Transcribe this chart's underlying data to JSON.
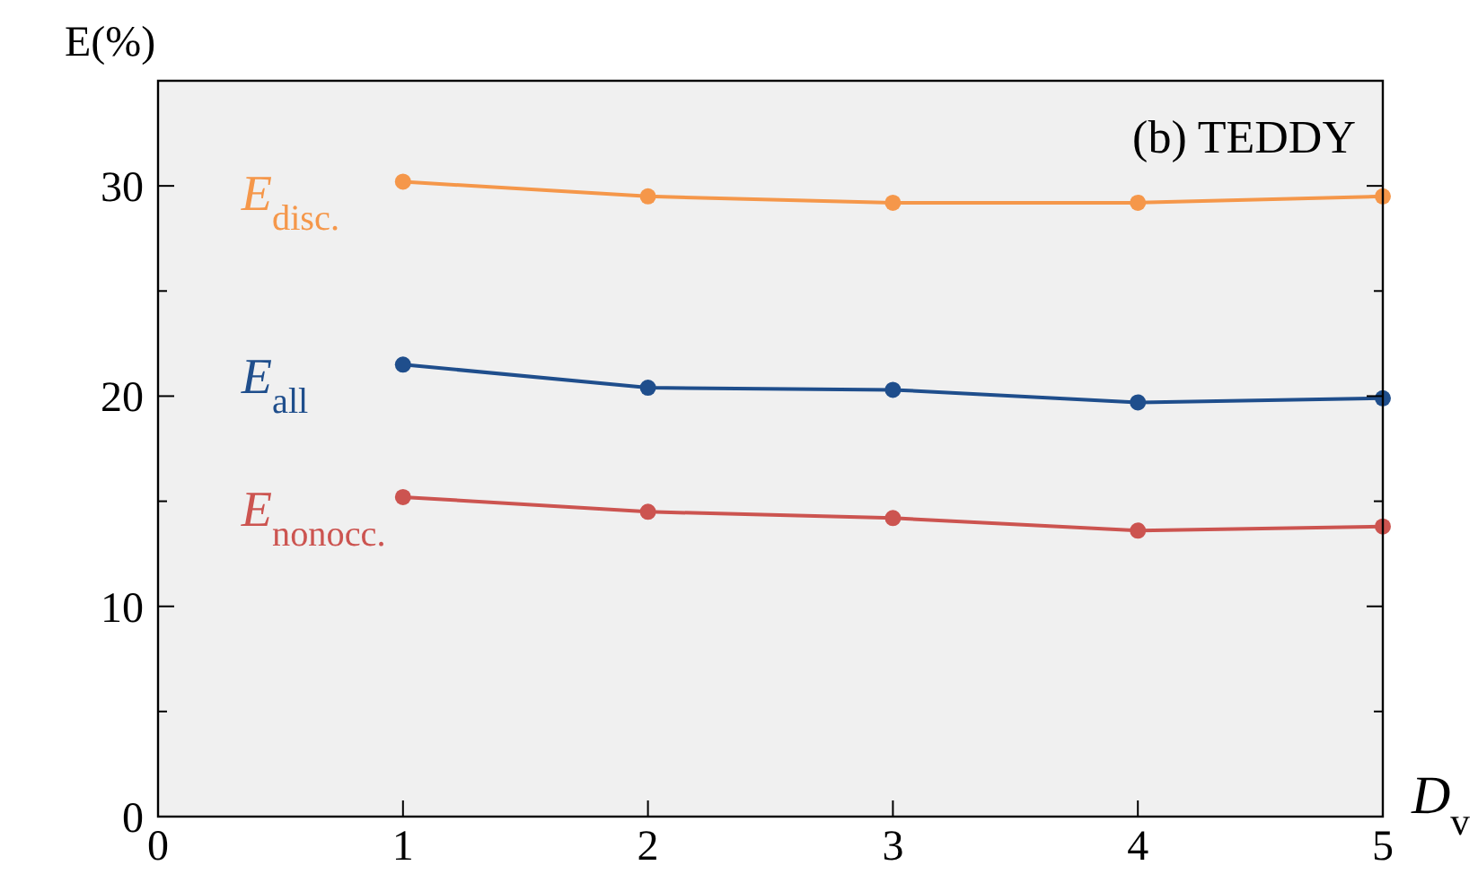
{
  "chart_data": {
    "type": "line",
    "xlabel": "D$_{v}$",
    "ylabel": "E(%)",
    "annotations": [
      "(b) TEDDY"
    ],
    "x": [
      1,
      2,
      3,
      4,
      5
    ],
    "series": [
      {
        "name": "E$_{disc.}$",
        "color": "#f5974a",
        "values": [
          30.2,
          29.5,
          29.2,
          29.2,
          29.5
        ]
      },
      {
        "name": "E$_{all}$",
        "color": "#1f4e8c",
        "values": [
          21.5,
          20.4,
          20.3,
          19.7,
          19.9
        ]
      },
      {
        "name": "E$_{nonocc.}$",
        "color": "#cc5450",
        "values": [
          15.2,
          14.5,
          14.2,
          13.6,
          13.8
        ]
      }
    ],
    "xlim": [
      0,
      5
    ],
    "xticks": [
      0,
      1,
      2,
      3,
      4,
      5
    ],
    "ylim": [
      0,
      35
    ],
    "yticks": [
      0,
      {
        "value": 5,
        "label": null
      },
      10,
      {
        "value": 15,
        "label": null
      },
      20,
      {
        "value": 25,
        "label": null
      },
      30,
      {
        "value": 35,
        "label": null
      }
    ],
    "grid": false,
    "legend": false,
    "marker": "circle",
    "line_style": "solid"
  }
}
